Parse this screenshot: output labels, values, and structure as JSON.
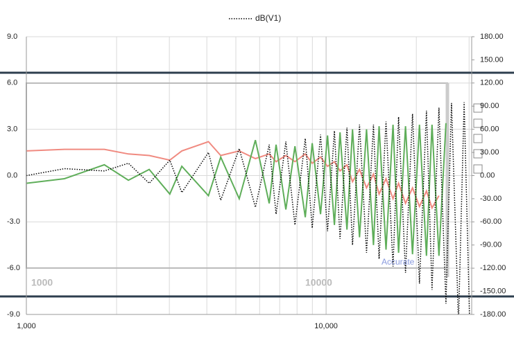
{
  "chart_data": {
    "type": "line",
    "x": [
      1000,
      1340,
      1820,
      2190,
      2570,
      3010,
      3300,
      4050,
      4450,
      5130,
      5810,
      6460,
      6810,
      7340,
      7870,
      8520,
      8990,
      9580,
      10110,
      10660,
      11130,
      11740,
      12250,
      12930,
      13640,
      14390,
      15020,
      15850,
      16720,
      17450,
      18410,
      19420,
      20490,
      21620,
      22560,
      23800,
      25110,
      26210,
      27650,
      28870,
      30130
    ],
    "series": [
      {
        "color": "#f08a80",
        "values": [
          1.6,
          1.7,
          1.7,
          1.4,
          1.3,
          1.0,
          1.6,
          2.2,
          1.3,
          1.6,
          1.1,
          1.4,
          0.9,
          1.3,
          0.9,
          1.4,
          0.8,
          1.2,
          0.6,
          0.9,
          0.3,
          0.7,
          -0.4,
          0.4,
          -0.8,
          0.1,
          -1.2,
          -0.2,
          -1.5,
          -0.5,
          -1.8,
          -0.8,
          -2.0,
          -1.0,
          -2.1,
          -1.3,
          null,
          null,
          null,
          null,
          null
        ]
      },
      {
        "color": "#5fae5a",
        "values": [
          -0.5,
          -0.2,
          0.7,
          -0.3,
          0.4,
          -1.2,
          0.6,
          -1.3,
          1.2,
          -1.5,
          2.3,
          -1.8,
          2.0,
          -2.2,
          1.9,
          -2.7,
          2.1,
          -2.5,
          2.6,
          -3.2,
          2.8,
          -3.5,
          3.0,
          -4.0,
          3.0,
          -4.5,
          3.2,
          -4.8,
          3.3,
          -5.0,
          3.2,
          -5.1,
          3.3,
          -5.2,
          3.3,
          -5.2,
          3.4,
          null,
          null,
          null,
          null
        ]
      },
      {
        "name": "dB(V1)",
        "color": "#000000",
        "dashed": true,
        "values": [
          0.0,
          0.45,
          0.3,
          0.8,
          -0.5,
          1.0,
          -1.1,
          1.5,
          -1.6,
          1.75,
          -2.05,
          2.0,
          -2.5,
          2.2,
          -3.2,
          2.4,
          -3.4,
          2.65,
          -3.6,
          2.9,
          -4.1,
          3.1,
          -4.5,
          3.3,
          -5.0,
          3.3,
          -5.4,
          3.5,
          -5.9,
          3.8,
          -6.3,
          4.0,
          -7.0,
          4.2,
          -7.4,
          4.4,
          -8.3,
          4.7,
          -9.5,
          4.75,
          -9.5
        ]
      }
    ],
    "xlog": true,
    "xlim": [
      1000,
      30600
    ],
    "xticks": [
      {
        "value": 1000,
        "label": "1,000"
      },
      {
        "value": 10000,
        "label": "10,000"
      }
    ],
    "xminorticks": [
      2000,
      3000,
      4000,
      5000,
      6000,
      7000,
      8000,
      9000,
      20000,
      30000
    ],
    "ylim": [
      -9,
      9
    ],
    "yticks": [
      {
        "value": -9,
        "label": "-9.0"
      },
      {
        "value": -6,
        "label": "-6.0"
      },
      {
        "value": -3,
        "label": "-3.0"
      },
      {
        "value": 0,
        "label": "0.0"
      },
      {
        "value": 3,
        "label": "3.0"
      },
      {
        "value": 6,
        "label": "6.0"
      },
      {
        "value": 9,
        "label": "9.0"
      }
    ],
    "y2lim": [
      -180,
      180
    ],
    "y2ticks": [
      {
        "value": -180,
        "label": "-180.00"
      },
      {
        "value": -150,
        "label": "-150.00"
      },
      {
        "value": -120,
        "label": "-120.00"
      },
      {
        "value": -90,
        "label": "-90.00"
      },
      {
        "value": -60,
        "label": "-60.00"
      },
      {
        "value": -30,
        "label": "-30.00"
      },
      {
        "value": 0,
        "label": "0.00"
      },
      {
        "value": 30,
        "label": "30.00"
      },
      {
        "value": 60,
        "label": "60.00"
      },
      {
        "value": 90,
        "label": "90.00"
      },
      {
        "value": 120,
        "label": "120.00"
      },
      {
        "value": 150,
        "label": "150.00"
      },
      {
        "value": 180,
        "label": "180.00"
      }
    ],
    "grid": true,
    "legend": "top",
    "annotations": [
      "1000",
      "10000",
      "Accurate"
    ]
  }
}
